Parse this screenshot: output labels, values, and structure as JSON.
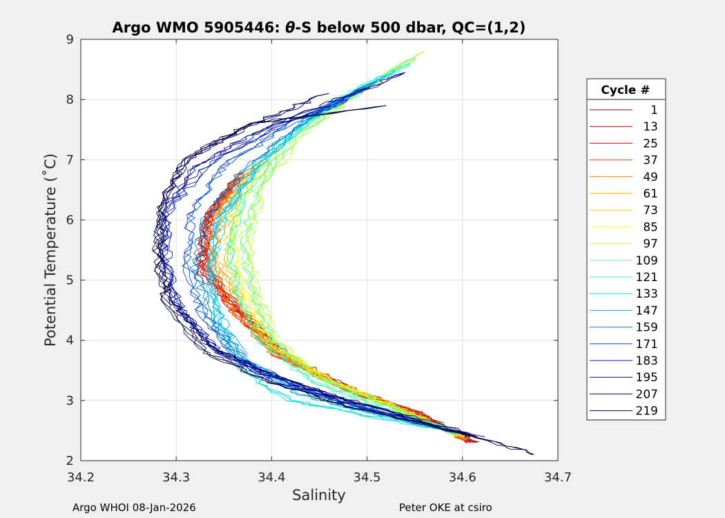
{
  "chart_data": {
    "type": "line",
    "title_parts": [
      "Argo WMO 5905446: ",
      "θ",
      "-S below 500 dbar,  QC=(1,2)"
    ],
    "xlabel": "Salinity",
    "ylabel_parts": [
      "Potential Temperature (",
      "˚",
      "C)"
    ],
    "xlim": [
      34.2,
      34.7
    ],
    "ylim": [
      2,
      9
    ],
    "xticks": [
      34.2,
      34.3,
      34.4,
      34.5,
      34.6,
      34.7
    ],
    "xtick_labels": [
      "34.2",
      "34.3",
      "34.4",
      "34.5",
      "34.6",
      "34.7"
    ],
    "yticks": [
      2,
      3,
      4,
      5,
      6,
      7,
      8,
      9
    ],
    "ytick_labels": [
      "2",
      "3",
      "4",
      "5",
      "6",
      "7",
      "8",
      "9"
    ],
    "grid": true,
    "legend_title": "Cycle #",
    "legend_position": "right",
    "series": [
      {
        "name": "1",
        "color": "#800000",
        "profile": [
          [
            34.615,
            2.3
          ],
          [
            34.56,
            2.75
          ],
          [
            34.49,
            3.15
          ],
          [
            34.42,
            3.7
          ],
          [
            34.375,
            4.4
          ],
          [
            34.33,
            5.3
          ],
          [
            34.335,
            6.1
          ],
          [
            34.37,
            6.8
          ]
        ]
      },
      {
        "name": "13",
        "color": "#b00000",
        "profile": [
          [
            34.612,
            2.3
          ],
          [
            34.555,
            2.75
          ],
          [
            34.485,
            3.15
          ],
          [
            34.415,
            3.7
          ],
          [
            34.37,
            4.4
          ],
          [
            34.325,
            5.2
          ],
          [
            34.33,
            6.0
          ],
          [
            34.365,
            6.7
          ]
        ]
      },
      {
        "name": "25",
        "color": "#e00000",
        "profile": [
          [
            34.61,
            2.3
          ],
          [
            34.55,
            2.8
          ],
          [
            34.48,
            3.2
          ],
          [
            34.41,
            3.75
          ],
          [
            34.365,
            4.45
          ],
          [
            34.325,
            5.1
          ],
          [
            34.33,
            5.9
          ],
          [
            34.36,
            6.6
          ]
        ]
      },
      {
        "name": "37",
        "color": "#ff3000",
        "profile": [
          [
            34.608,
            2.35
          ],
          [
            34.545,
            2.8
          ],
          [
            34.475,
            3.2
          ],
          [
            34.405,
            3.75
          ],
          [
            34.36,
            4.5
          ],
          [
            34.33,
            5.2
          ],
          [
            34.335,
            6.0
          ],
          [
            34.365,
            6.7
          ]
        ]
      },
      {
        "name": "49",
        "color": "#ff7000",
        "profile": [
          [
            34.605,
            2.35
          ],
          [
            34.54,
            2.85
          ],
          [
            34.47,
            3.25
          ],
          [
            34.4,
            3.8
          ],
          [
            34.36,
            4.5
          ],
          [
            34.335,
            5.3
          ],
          [
            34.34,
            6.1
          ],
          [
            34.37,
            6.8
          ]
        ]
      },
      {
        "name": "61",
        "color": "#ffa000",
        "profile": [
          [
            34.603,
            2.35
          ],
          [
            34.535,
            2.85
          ],
          [
            34.465,
            3.3
          ],
          [
            34.4,
            3.85
          ],
          [
            34.365,
            4.6
          ],
          [
            34.34,
            5.4
          ],
          [
            34.35,
            6.2
          ],
          [
            34.38,
            6.9
          ]
        ]
      },
      {
        "name": "73",
        "color": "#ffd000",
        "profile": [
          [
            34.6,
            2.4
          ],
          [
            34.53,
            2.9
          ],
          [
            34.46,
            3.35
          ],
          [
            34.4,
            3.9
          ],
          [
            34.37,
            4.6
          ],
          [
            34.35,
            5.4
          ],
          [
            34.36,
            6.3
          ],
          [
            34.39,
            7.0
          ]
        ]
      },
      {
        "name": "85",
        "color": "#ffff00",
        "profile": [
          [
            34.6,
            2.4
          ],
          [
            34.525,
            2.9
          ],
          [
            34.455,
            3.35
          ],
          [
            34.4,
            3.95
          ],
          [
            34.375,
            4.7
          ],
          [
            34.36,
            5.5
          ],
          [
            34.37,
            6.4
          ],
          [
            34.41,
            7.2
          ]
        ]
      },
      {
        "name": "97",
        "color": "#c0ff40",
        "profile": [
          [
            34.6,
            2.4
          ],
          [
            34.52,
            2.95
          ],
          [
            34.45,
            3.4
          ],
          [
            34.405,
            4.0
          ],
          [
            34.385,
            4.8
          ],
          [
            34.375,
            5.6
          ],
          [
            34.39,
            6.5
          ],
          [
            34.43,
            7.4
          ],
          [
            34.49,
            8.1
          ],
          [
            34.56,
            8.8
          ]
        ]
      },
      {
        "name": "109",
        "color": "#70ff80",
        "profile": [
          [
            34.6,
            2.45
          ],
          [
            34.515,
            2.95
          ],
          [
            34.445,
            3.4
          ],
          [
            34.4,
            4.0
          ],
          [
            34.38,
            4.8
          ],
          [
            34.37,
            5.6
          ],
          [
            34.385,
            6.5
          ],
          [
            34.425,
            7.4
          ],
          [
            34.48,
            8.0
          ],
          [
            34.55,
            8.7
          ]
        ]
      },
      {
        "name": "121",
        "color": "#30ffb0",
        "profile": [
          [
            34.6,
            2.45
          ],
          [
            34.51,
            2.9
          ],
          [
            34.44,
            3.35
          ],
          [
            34.39,
            3.95
          ],
          [
            34.365,
            4.7
          ],
          [
            34.355,
            5.5
          ],
          [
            34.37,
            6.4
          ],
          [
            34.41,
            7.3
          ],
          [
            34.47,
            8.0
          ],
          [
            34.545,
            8.6
          ]
        ]
      },
      {
        "name": "133",
        "color": "#00e0e0",
        "profile": [
          [
            34.6,
            2.45
          ],
          [
            34.5,
            2.75
          ],
          [
            34.42,
            3.0
          ],
          [
            34.37,
            3.5
          ],
          [
            34.345,
            4.2
          ],
          [
            34.335,
            5.1
          ],
          [
            34.35,
            6.1
          ],
          [
            34.39,
            7.0
          ],
          [
            34.45,
            7.8
          ],
          [
            34.53,
            8.5
          ]
        ]
      },
      {
        "name": "147",
        "color": "#00b0f0",
        "profile": [
          [
            34.6,
            2.45
          ],
          [
            34.5,
            2.8
          ],
          [
            34.43,
            3.1
          ],
          [
            34.375,
            3.6
          ],
          [
            34.345,
            4.4
          ],
          [
            34.335,
            5.2
          ],
          [
            34.345,
            6.0
          ],
          [
            34.38,
            6.8
          ],
          [
            34.44,
            7.7
          ],
          [
            34.52,
            8.4
          ]
        ]
      },
      {
        "name": "159",
        "color": "#0080d0",
        "profile": [
          [
            34.6,
            2.45
          ],
          [
            34.5,
            2.85
          ],
          [
            34.43,
            3.2
          ],
          [
            34.37,
            3.7
          ],
          [
            34.335,
            4.4
          ],
          [
            34.32,
            5.2
          ],
          [
            34.33,
            6.0
          ],
          [
            34.37,
            6.8
          ],
          [
            34.43,
            7.6
          ],
          [
            34.51,
            8.3
          ]
        ]
      },
      {
        "name": "171",
        "color": "#0050e0",
        "profile": [
          [
            34.6,
            2.45
          ],
          [
            34.49,
            2.9
          ],
          [
            34.42,
            3.25
          ],
          [
            34.36,
            3.75
          ],
          [
            34.325,
            4.5
          ],
          [
            34.31,
            5.3
          ],
          [
            34.315,
            6.1
          ],
          [
            34.35,
            6.9
          ],
          [
            34.42,
            7.6
          ],
          [
            34.5,
            8.2
          ]
        ]
      },
      {
        "name": "183",
        "color": "#0020c0",
        "profile": [
          [
            34.6,
            2.45
          ],
          [
            34.48,
            2.95
          ],
          [
            34.405,
            3.3
          ],
          [
            34.345,
            3.8
          ],
          [
            34.305,
            4.5
          ],
          [
            34.29,
            5.3
          ],
          [
            34.29,
            6.1
          ],
          [
            34.33,
            6.9
          ],
          [
            34.4,
            7.5
          ],
          [
            34.48,
            8.0
          ]
        ]
      },
      {
        "name": "195",
        "color": "#000090",
        "profile": [
          [
            34.61,
            2.4
          ],
          [
            34.48,
            3.0
          ],
          [
            34.4,
            3.4
          ],
          [
            34.34,
            3.85
          ],
          [
            34.3,
            4.6
          ],
          [
            34.285,
            5.4
          ],
          [
            34.29,
            6.2
          ],
          [
            34.32,
            6.9
          ],
          [
            34.39,
            7.5
          ],
          [
            34.47,
            8.0
          ],
          [
            34.54,
            8.45
          ]
        ]
      },
      {
        "name": "207",
        "color": "#000060",
        "profile": [
          [
            34.62,
            2.4
          ],
          [
            34.47,
            3.05
          ],
          [
            34.39,
            3.5
          ],
          [
            34.33,
            3.95
          ],
          [
            34.295,
            4.7
          ],
          [
            34.28,
            5.5
          ],
          [
            34.285,
            6.3
          ],
          [
            34.31,
            7.0
          ],
          [
            34.38,
            7.6
          ],
          [
            34.46,
            8.1
          ]
        ]
      },
      {
        "name": "219",
        "color": "#000040",
        "profile": [
          [
            34.68,
            2.1
          ],
          [
            34.6,
            2.45
          ],
          [
            34.48,
            2.9
          ],
          [
            34.4,
            3.3
          ],
          [
            34.33,
            3.8
          ],
          [
            34.29,
            4.6
          ],
          [
            34.28,
            5.4
          ],
          [
            34.285,
            6.2
          ],
          [
            34.31,
            7.0
          ],
          [
            34.38,
            7.6
          ],
          [
            34.52,
            7.9
          ]
        ]
      }
    ]
  },
  "footer": {
    "left": "Argo WHOI 08-Jan-2026",
    "right": "Peter OKE at csiro"
  }
}
